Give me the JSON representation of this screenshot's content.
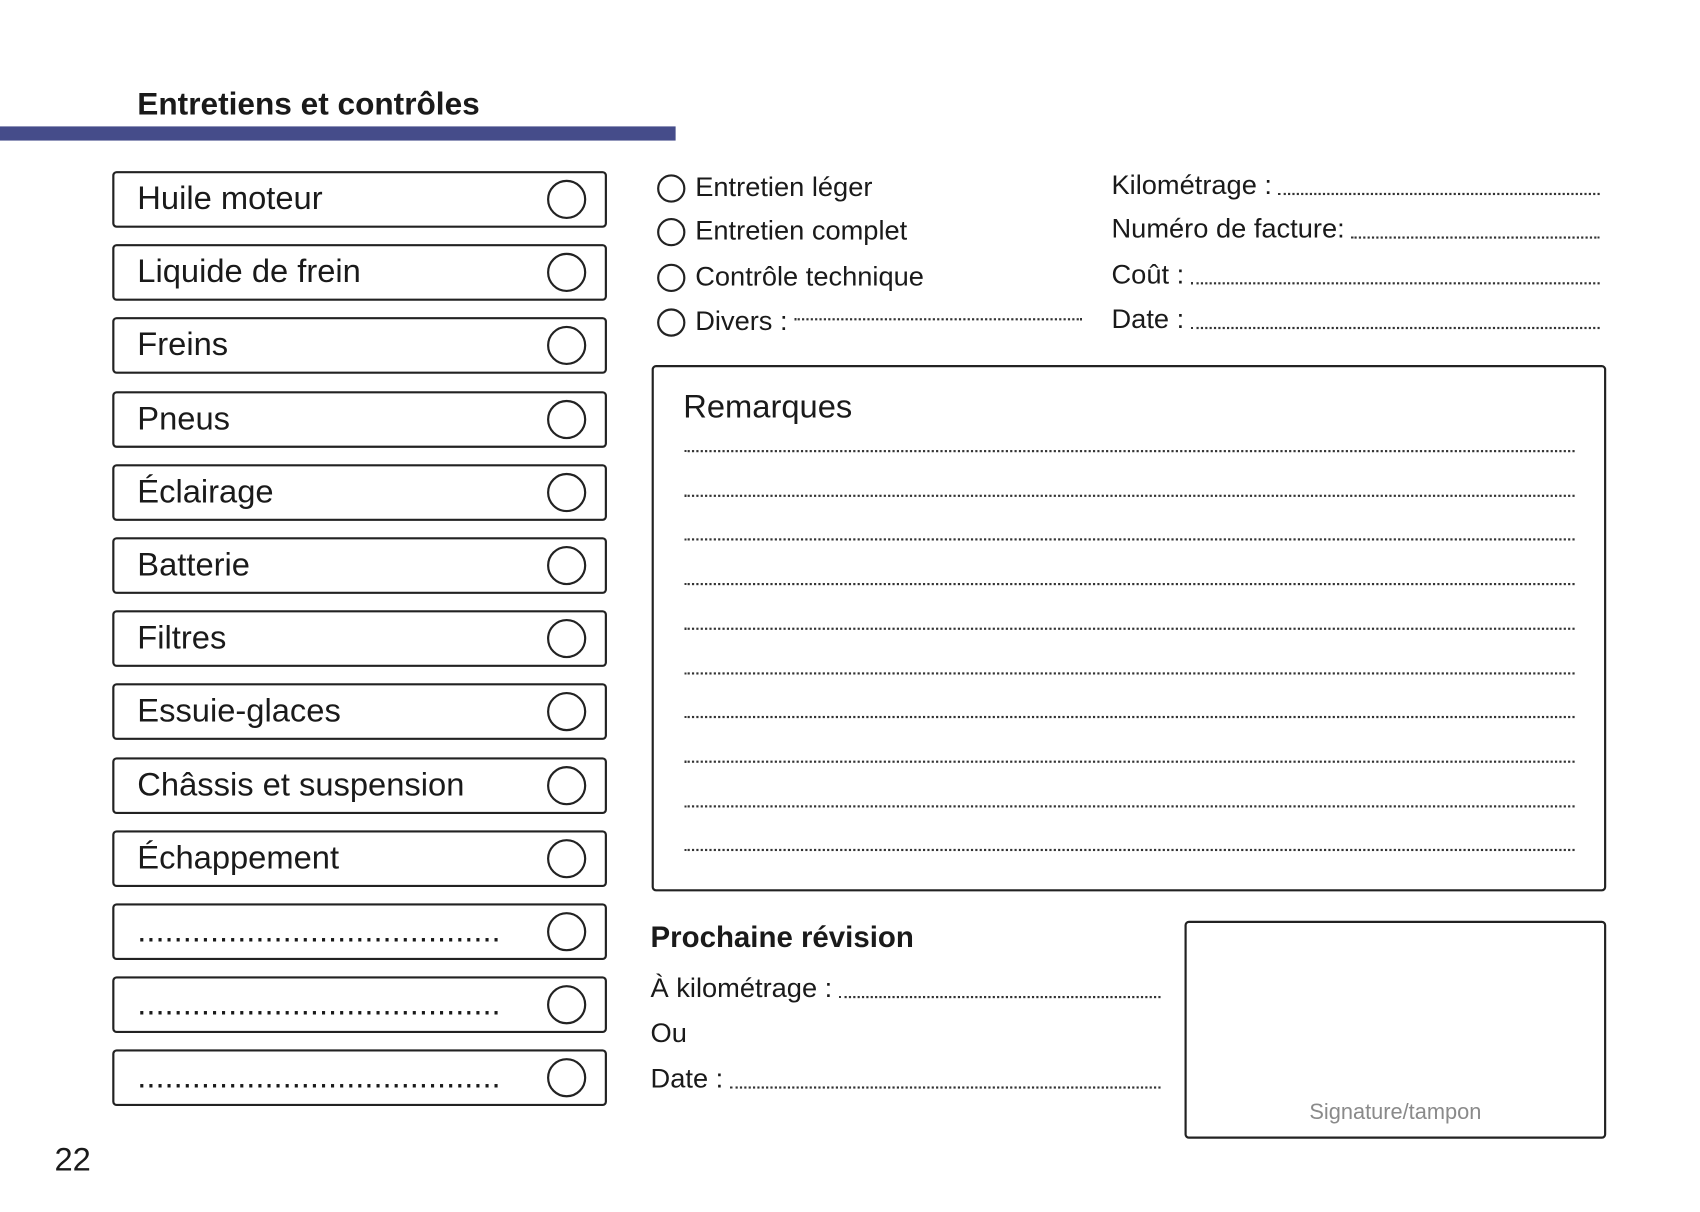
{
  "title": "Entretiens et contrôles",
  "accent_color": "#454c8a",
  "checklist": [
    "Huile moteur",
    "Liquide de frein",
    "Freins",
    "Pneus",
    "Éclairage",
    "Batterie",
    "Filtres",
    "Essuie-glaces",
    "Châssis et suspension",
    "Échappement",
    "........................................",
    "........................................",
    "........................................"
  ],
  "options": [
    "Entretien léger",
    "Entretien complet",
    "Contrôle technique",
    "Divers :"
  ],
  "fields": [
    "Kilométrage :",
    "Numéro de facture:",
    "Coût :",
    "Date :"
  ],
  "remarks": {
    "title": "Remarques",
    "line_count": 10
  },
  "next_revision": {
    "title": "Prochaine révision",
    "km_label": "À kilométrage :",
    "or_label": "Ou",
    "date_label": "Date :"
  },
  "signature_label": "Signature/tampon",
  "page_number": "22"
}
